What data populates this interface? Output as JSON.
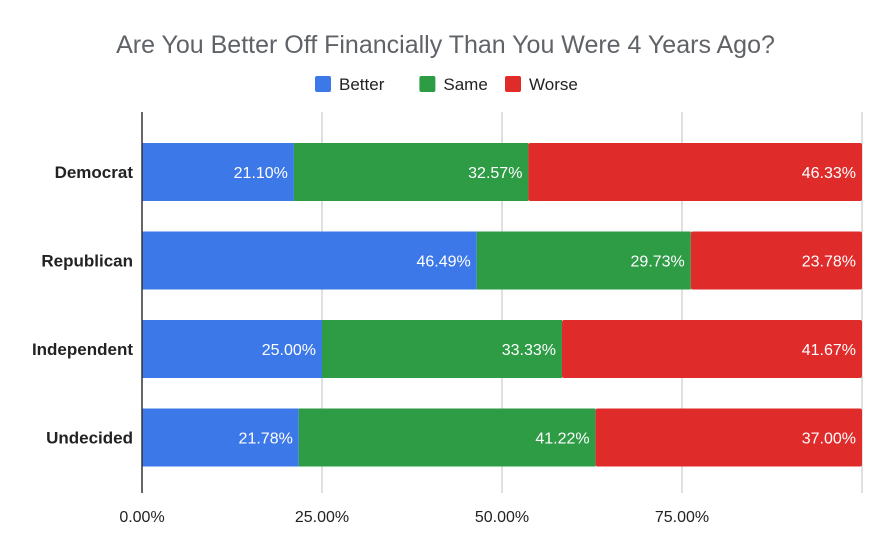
{
  "chart_data": {
    "type": "bar",
    "orientation": "horizontal",
    "stacked": true,
    "title": "Are You Better Off Financially Than You Were 4 Years Ago?",
    "categories": [
      "Democrat",
      "Republican",
      "Independent",
      "Undecided"
    ],
    "series": [
      {
        "name": "Better",
        "color": "#3c78e8",
        "values": [
          21.1,
          46.49,
          25.0,
          21.78
        ],
        "labels": [
          "21.10%",
          "46.49%",
          "25.00%",
          "21.78%"
        ]
      },
      {
        "name": "Same",
        "color": "#2e9b45",
        "values": [
          32.57,
          29.73,
          33.33,
          41.22
        ],
        "labels": [
          "32.57%",
          "29.73%",
          "33.33%",
          "41.22%"
        ]
      },
      {
        "name": "Worse",
        "color": "#e02b2b",
        "values": [
          46.33,
          23.78,
          41.67,
          37.0
        ],
        "labels": [
          "46.33%",
          "23.78%",
          "41.67%",
          "37.00%"
        ]
      }
    ],
    "xlim": [
      0,
      100
    ],
    "x_ticks": [
      0,
      25,
      50,
      75
    ],
    "x_tick_labels": [
      "0.00%",
      "25.00%",
      "50.00%",
      "75.00%"
    ],
    "grid": true,
    "legend_position": "top"
  }
}
